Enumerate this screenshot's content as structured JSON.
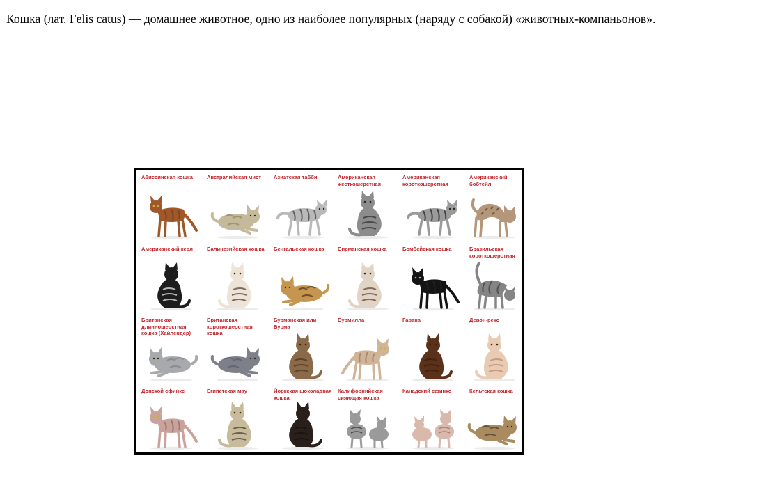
{
  "intro": {
    "text": "Кошка (лат. Felis catus) — домашнее животное, одно из наиболее популярных (наряду с собакой) «животных-компаньонов»."
  },
  "poster": {
    "label_color": "#c0262c",
    "breeds": [
      {
        "label": "Абиссинская кошка",
        "pose": "standing",
        "fur": "#a0582a",
        "marks": "#6b3515"
      },
      {
        "label": "Австралийская мист",
        "pose": "lying",
        "fur": "#c4b99b",
        "marks": "#8f8465"
      },
      {
        "label": "Азиатская табби",
        "pose": "walking",
        "fur": "#b9b9b9",
        "marks": "#4a4a4a"
      },
      {
        "label": "Американская жесткошерстная",
        "pose": "sitting",
        "fur": "#8c8c8c",
        "marks": "#2c2c2c"
      },
      {
        "label": "Американская короткошерстная",
        "pose": "walking",
        "fur": "#9a9a9a",
        "marks": "#2a2a2a"
      },
      {
        "label": "Американский бобтейл",
        "pose": "arched",
        "fur": "#b4977a",
        "marks": "#5f4632"
      },
      {
        "label": "Американский керл",
        "pose": "sitting",
        "fur": "#1d1d1d",
        "marks": "#f2f2f2"
      },
      {
        "label": "Балинезийская кошка",
        "pose": "sitting",
        "fur": "#ede3d6",
        "marks": "#4c3a30"
      },
      {
        "label": "Бенгальская кошка",
        "pose": "lying",
        "fur": "#c6964f",
        "marks": "#4a3218"
      },
      {
        "label": "Бирманская кошка",
        "pose": "sitting",
        "fur": "#e2d4c5",
        "marks": "#5a4032"
      },
      {
        "label": "Бомбейская кошка",
        "pose": "standing",
        "fur": "#141414",
        "marks": "#2c2c2c"
      },
      {
        "label": "Бразильская короткошерстная",
        "pose": "sniffing",
        "fur": "#858585",
        "marks": "#3a3a3a"
      },
      {
        "label": "Британская длинношерстная кошка (Хайлендер)",
        "pose": "lying",
        "fur": "#a7a9ad",
        "marks": "#7c7f84"
      },
      {
        "label": "Британская короткошерстная кошка",
        "pose": "lying",
        "fur": "#7d8088",
        "marks": "#5a5d66"
      },
      {
        "label": "Бурманская или Бурма",
        "pose": "sitting",
        "fur": "#8a6a48",
        "marks": "#4b3520"
      },
      {
        "label": "Бурмилла",
        "pose": "standing",
        "fur": "#cfb498",
        "marks": "#8a6c52"
      },
      {
        "label": "Гавана",
        "pose": "sitting",
        "fur": "#5b3119",
        "marks": "#3a1d0c"
      },
      {
        "label": "Девон-рекс",
        "pose": "sitting",
        "fur": "#e8cbb2",
        "marks": "#b08a70"
      },
      {
        "label": "Донской сфинкс",
        "pose": "standing",
        "fur": "#c9a29c",
        "marks": "#7c5a54"
      },
      {
        "label": "Египетская мау",
        "pose": "sitting",
        "fur": "#c8bb9c",
        "marks": "#3e3a30"
      },
      {
        "label": "Йоркская шоколадная кошка",
        "pose": "sitting",
        "fur": "#2a201b",
        "marks": "#14100d"
      },
      {
        "label": "Калифорнийская сияющая кошка",
        "pose": "pair",
        "fur": "#9a9a9a",
        "marks": "#2f2f2f"
      },
      {
        "label": "Канадский сфинкс",
        "pose": "pair",
        "fur": "#d8b9ac",
        "marks": "#8a6f66"
      },
      {
        "label": "Кельтская кошка",
        "pose": "lying",
        "fur": "#a98b5f",
        "marks": "#4a3a22"
      }
    ]
  }
}
